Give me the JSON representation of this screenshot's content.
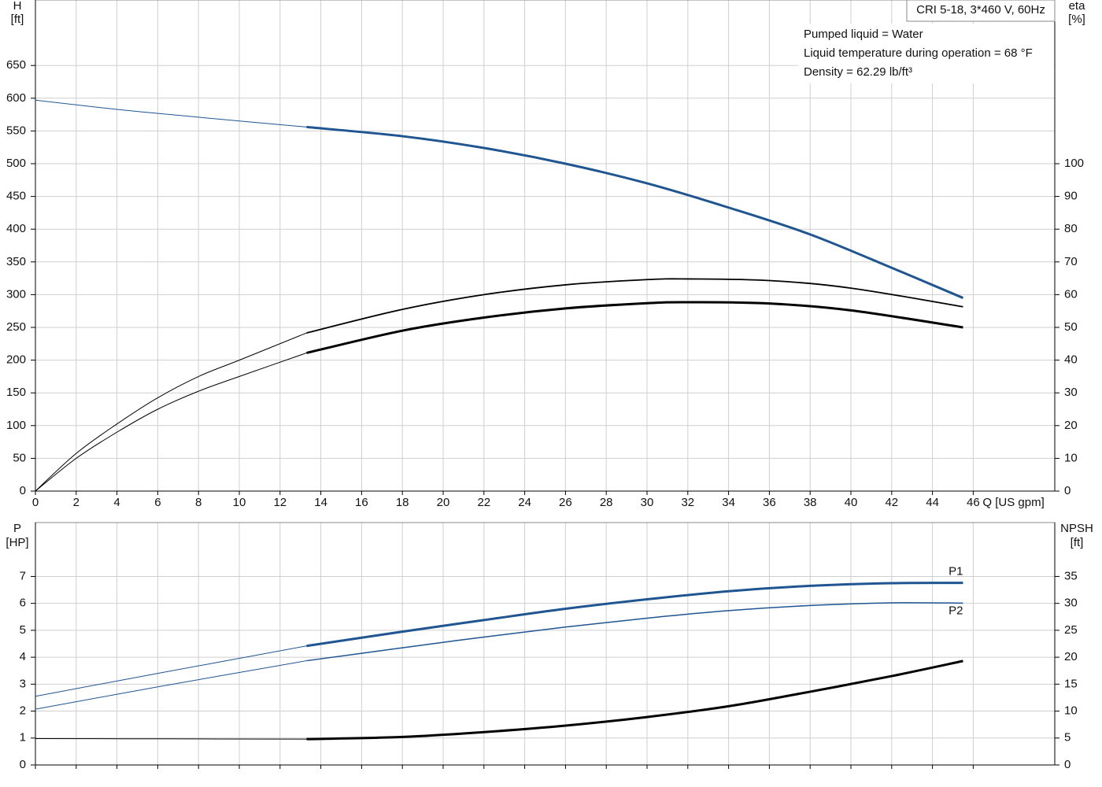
{
  "chart_data": [
    {
      "type": "line",
      "y_label": "H",
      "y_unit": "[ft]",
      "y2_label": "eta",
      "y2_unit": "[%]",
      "x_label": "Q [US gpm]",
      "info_title": "CRI 5-18, 3*460 V, 60Hz",
      "info_lines": [
        "Pumped liquid = Water",
        "Liquid temperature during operation = 68 °F",
        "Density = 62.29 lb/ft³"
      ],
      "xlim": [
        0,
        50
      ],
      "xticks": [
        0,
        2,
        4,
        6,
        8,
        10,
        12,
        14,
        16,
        18,
        20,
        22,
        24,
        26,
        28,
        30,
        32,
        34,
        36,
        38,
        40,
        42,
        44,
        46
      ],
      "ylim": [
        0,
        750
      ],
      "yticks": [
        0,
        50,
        100,
        150,
        200,
        250,
        300,
        350,
        400,
        450,
        500,
        550,
        600,
        650
      ],
      "y2lim": [
        0,
        150
      ],
      "y2ticks": [
        0,
        10,
        20,
        30,
        40,
        50,
        60,
        70,
        80,
        90,
        100
      ],
      "grid": true,
      "series": [
        {
          "color": "#1f5591",
          "line_width": 1,
          "x": [
            0,
            4,
            8,
            13.3
          ],
          "values": [
            597,
            583,
            571,
            556
          ]
        },
        {
          "color": "#1f5591",
          "line_width": 3,
          "x": [
            13.3,
            18,
            22,
            26,
            30,
            34,
            38,
            42,
            45.5
          ],
          "values": [
            556,
            542,
            524,
            500,
            470,
            433,
            392,
            341,
            295
          ]
        },
        {
          "color": "#000000",
          "line_width": 1,
          "axis": "y2",
          "x": [
            0,
            2,
            4,
            6,
            8,
            10,
            13.3
          ],
          "values": [
            0,
            11.5,
            20.5,
            28.5,
            35,
            40,
            48.3
          ]
        },
        {
          "color": "#000000",
          "line_width": 1.8,
          "axis": "y2",
          "x": [
            13.3,
            18,
            22,
            26,
            30,
            32,
            36,
            40,
            45.5
          ],
          "values": [
            48.3,
            55.5,
            60,
            63,
            64.6,
            64.8,
            64.3,
            62,
            56.3
          ]
        },
        {
          "color": "#000000",
          "line_width": 1,
          "axis": "y2",
          "x": [
            0,
            2,
            4,
            6,
            8,
            10,
            13.3
          ],
          "values": [
            0,
            10,
            18,
            25,
            30.5,
            35,
            42.2
          ]
        },
        {
          "color": "#000000",
          "line_width": 3,
          "axis": "y2",
          "x": [
            13.3,
            18,
            22,
            26,
            30,
            32,
            36,
            40,
            45.5
          ],
          "values": [
            42.2,
            49,
            53,
            55.8,
            57.4,
            57.7,
            57.3,
            55.2,
            50
          ]
        }
      ]
    },
    {
      "type": "line",
      "y_label": "P",
      "y_unit": "[HP]",
      "y2_label": "NPSH",
      "y2_unit": "[ft]",
      "xlim": [
        0,
        50
      ],
      "ylim": [
        0,
        9
      ],
      "yticks": [
        0,
        1,
        2,
        3,
        4,
        5,
        6,
        7
      ],
      "y2lim": [
        0,
        45
      ],
      "y2ticks": [
        0,
        5,
        10,
        15,
        20,
        25,
        30,
        35
      ],
      "grid": true,
      "series": [
        {
          "color": "#1f5591",
          "line_width": 1,
          "x": [
            0,
            6,
            13.3
          ],
          "values": [
            2.55,
            3.4,
            4.42
          ]
        },
        {
          "name": "P1",
          "color": "#1f5591",
          "line_width": 3,
          "x": [
            13.3,
            18,
            22,
            26,
            30,
            34,
            38,
            42,
            45.5
          ],
          "values": [
            4.42,
            4.95,
            5.38,
            5.8,
            6.15,
            6.45,
            6.65,
            6.75,
            6.76
          ]
        },
        {
          "color": "#1f5591",
          "line_width": 1,
          "x": [
            0,
            6,
            13.3
          ],
          "values": [
            2.07,
            2.9,
            3.87
          ]
        },
        {
          "name": "P2",
          "color": "#1f5591",
          "line_width": 1.5,
          "x": [
            13.3,
            18,
            22,
            26,
            30,
            34,
            38,
            42,
            45.5
          ],
          "values": [
            3.87,
            4.35,
            4.75,
            5.12,
            5.45,
            5.73,
            5.92,
            6.02,
            6.01
          ]
        },
        {
          "color": "#000000",
          "line_width": 1,
          "axis": "y2",
          "x": [
            0,
            6,
            13.3
          ],
          "values": [
            4.9,
            4.85,
            4.8
          ]
        },
        {
          "color": "#000000",
          "line_width": 3,
          "axis": "y2",
          "x": [
            13.3,
            18,
            22,
            26,
            30,
            34,
            38,
            42,
            45.5
          ],
          "values": [
            4.8,
            5.2,
            6.1,
            7.3,
            8.9,
            10.9,
            13.6,
            16.5,
            19.3
          ]
        }
      ]
    }
  ]
}
